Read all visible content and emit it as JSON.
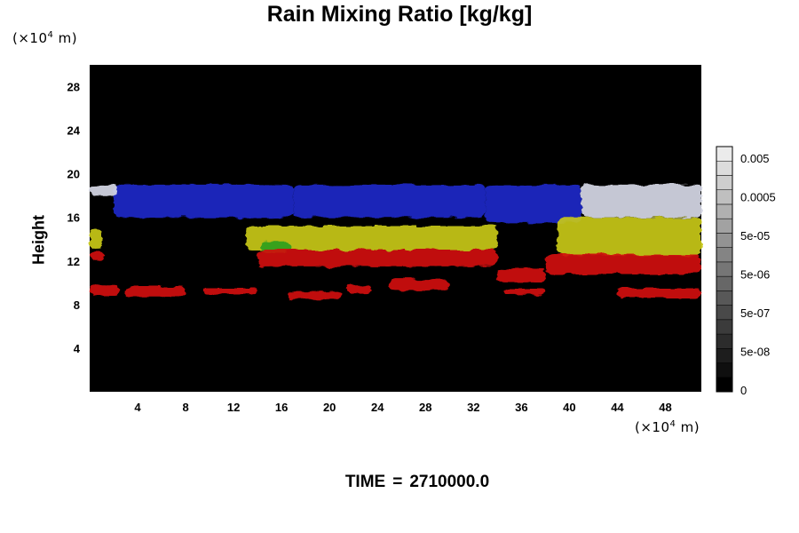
{
  "title": "Rain Mixing Ratio [kg/kg]",
  "y_unit": {
    "prefix": "(×10",
    "exp": "4",
    "suffix": " m)"
  },
  "x_unit": {
    "prefix": "(×10",
    "exp": "4",
    "suffix": " m)"
  },
  "ylabel": "Height",
  "time": {
    "label": "TIME",
    "eq": "=",
    "value": "2710000.0"
  },
  "colors": {
    "background": "#000000",
    "red": "#d01010",
    "yellow": "#c8c81a",
    "green": "#2e9e1e",
    "blue": "#1c28c8",
    "white": "#d6d8e6"
  },
  "chart_data": {
    "type": "heatmap",
    "title": "Rain Mixing Ratio [kg/kg]",
    "xlabel": "(×10⁴ m)",
    "ylabel": "Height",
    "y_unit_label": "(×10⁴ m)",
    "xlim": [
      0,
      51
    ],
    "ylim": [
      0,
      30
    ],
    "x_ticks": [
      "4",
      "8",
      "12",
      "16",
      "20",
      "24",
      "28",
      "32",
      "36",
      "40",
      "44",
      "48"
    ],
    "y_ticks": [
      "4",
      "8",
      "12",
      "16",
      "20",
      "24",
      "28"
    ],
    "colorbar": {
      "labels": [
        "0.005",
        "0.0005",
        "5e-05",
        "5e-06",
        "5e-07",
        "5e-08",
        "0"
      ],
      "levels": 17
    },
    "regions": [
      {
        "color": "blue",
        "x": [
          2,
          17
        ],
        "y": [
          16,
          19
        ]
      },
      {
        "color": "blue",
        "x": [
          17,
          33
        ],
        "y": [
          16,
          19
        ]
      },
      {
        "color": "blue",
        "x": [
          33,
          41
        ],
        "y": [
          15.5,
          19
        ]
      },
      {
        "color": "white",
        "x": [
          41,
          51
        ],
        "y": [
          16,
          19
        ]
      },
      {
        "color": "white",
        "x": [
          0,
          2.3
        ],
        "y": [
          18,
          19
        ]
      },
      {
        "color": "yellow",
        "x": [
          13,
          34
        ],
        "y": [
          13,
          15.2
        ]
      },
      {
        "color": "yellow",
        "x": [
          39,
          51
        ],
        "y": [
          12.5,
          16
        ]
      },
      {
        "color": "yellow",
        "x": [
          0,
          1
        ],
        "y": [
          13,
          15
        ]
      },
      {
        "color": "green",
        "x": [
          14.3,
          16.8
        ],
        "y": [
          12.8,
          13.8
        ]
      },
      {
        "color": "red",
        "x": [
          14,
          34
        ],
        "y": [
          11.5,
          13
        ]
      },
      {
        "color": "red",
        "x": [
          38,
          51
        ],
        "y": [
          10.8,
          12.6
        ]
      },
      {
        "color": "red",
        "x": [
          0,
          1.2
        ],
        "y": [
          12,
          12.8
        ]
      },
      {
        "color": "red",
        "x": [
          34,
          38
        ],
        "y": [
          10,
          11.3
        ]
      },
      {
        "color": "red",
        "x": [
          0,
          2.5
        ],
        "y": [
          8.8,
          9.8
        ]
      },
      {
        "color": "red",
        "x": [
          3,
          8
        ],
        "y": [
          8.7,
          9.7
        ]
      },
      {
        "color": "red",
        "x": [
          9.5,
          14
        ],
        "y": [
          9,
          9.5
        ]
      },
      {
        "color": "red",
        "x": [
          16.5,
          21
        ],
        "y": [
          8.5,
          9.2
        ]
      },
      {
        "color": "red",
        "x": [
          21.5,
          23.5
        ],
        "y": [
          9,
          9.8
        ]
      },
      {
        "color": "red",
        "x": [
          25,
          30
        ],
        "y": [
          9.3,
          10.3
        ]
      },
      {
        "color": "red",
        "x": [
          34.5,
          38
        ],
        "y": [
          8.9,
          9.5
        ]
      },
      {
        "color": "red",
        "x": [
          44,
          51
        ],
        "y": [
          8.6,
          9.5
        ]
      }
    ]
  }
}
